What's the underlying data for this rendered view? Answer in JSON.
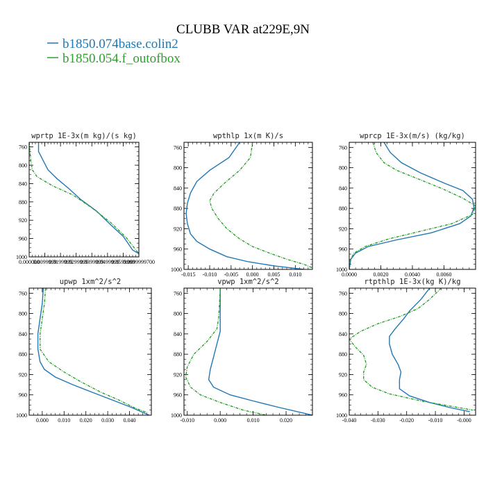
{
  "figure": {
    "title": "CLUBB VAR at229E,9N",
    "legend": [
      {
        "label": "b1850.074base.colin2",
        "color": "#1f77b4"
      },
      {
        "label": "b1850.054.f_outofbox",
        "color": "#2ca02c"
      }
    ]
  },
  "chart_data": [
    {
      "type": "line",
      "title": "wprtp  1E-3x(m kg)/(s kg)",
      "xlabel": "",
      "ylabel": "",
      "xlim": [
        0.0,
        0.07
      ],
      "ylim": [
        1000,
        750
      ],
      "y_inverted": true,
      "xtick_values": [
        0.0,
        0.01,
        0.02,
        0.03,
        0.04,
        0.05,
        0.06,
        0.07
      ],
      "xtick_labels": [
        "0.000000",
        "0.0099999",
        "0.0199999",
        "0.0299999",
        "0.0399999",
        "0.0499999",
        "0.0599999",
        "0.0699999700"
      ],
      "ytick_values": [
        760,
        800,
        840,
        880,
        920,
        960,
        1000
      ],
      "ytick_labels": [
        "760",
        "800",
        "840",
        "880",
        "920",
        "960",
        "1000"
      ],
      "series": [
        {
          "name": "b1850.074base.colin2",
          "color": "#1f77b4",
          "dashed": false,
          "points": [
            [
              0.006,
              750
            ],
            [
              0.006,
              770
            ],
            [
              0.009,
              790
            ],
            [
              0.012,
              810
            ],
            [
              0.018,
              830
            ],
            [
              0.025,
              850
            ],
            [
              0.033,
              875
            ],
            [
              0.043,
              900
            ],
            [
              0.052,
              930
            ],
            [
              0.06,
              955
            ],
            [
              0.064,
              975
            ],
            [
              0.066,
              985
            ],
            [
              0.07,
              993
            ]
          ]
        },
        {
          "name": "b1850.054.f_outofbox",
          "color": "#2ca02c",
          "dashed": true,
          "points": [
            [
              0.0,
              750
            ],
            [
              0.0005,
              770
            ],
            [
              0.001,
              790
            ],
            [
              0.002,
              810
            ],
            [
              0.005,
              825
            ],
            [
              0.015,
              845
            ],
            [
              0.028,
              865
            ],
            [
              0.04,
              893
            ],
            [
              0.052,
              925
            ],
            [
              0.062,
              958
            ],
            [
              0.067,
              980
            ],
            [
              0.07,
              993
            ]
          ]
        }
      ]
    },
    {
      "type": "line",
      "title": "wpthlp  1x(m K)/s",
      "xlabel": "",
      "ylabel": "",
      "xlim": [
        -0.016,
        0.014
      ],
      "ylim": [
        1000,
        750
      ],
      "y_inverted": true,
      "xtick_values": [
        -0.015,
        -0.01,
        -0.005,
        0.0,
        0.005,
        0.01
      ],
      "xtick_labels": [
        "-0.015",
        "-0.010",
        "-0.005",
        "0.000",
        "0.005",
        "0.010"
      ],
      "ytick_values": [
        760,
        800,
        840,
        880,
        920,
        960,
        1000
      ],
      "ytick_labels": [
        "760",
        "800",
        "840",
        "880",
        "920",
        "960",
        "1000"
      ],
      "series": [
        {
          "name": "b1850.074base.colin2",
          "color": "#1f77b4",
          "dashed": false,
          "points": [
            [
              -0.003,
              750
            ],
            [
              -0.0055,
              780
            ],
            [
              -0.01,
              805
            ],
            [
              -0.013,
              827
            ],
            [
              -0.0145,
              850
            ],
            [
              -0.0152,
              870
            ],
            [
              -0.0155,
              890
            ],
            [
              -0.0152,
              910
            ],
            [
              -0.0145,
              930
            ],
            [
              -0.013,
              945
            ],
            [
              -0.01,
              960
            ],
            [
              -0.006,
              975
            ],
            [
              -0.001,
              985
            ],
            [
              0.005,
              993
            ],
            [
              0.012,
              1000
            ]
          ]
        },
        {
          "name": "b1850.054.f_outofbox",
          "color": "#2ca02c",
          "dashed": true,
          "points": [
            [
              0.0,
              750
            ],
            [
              -0.0005,
              780
            ],
            [
              -0.003,
              805
            ],
            [
              -0.0065,
              830
            ],
            [
              -0.009,
              850
            ],
            [
              -0.01,
              865
            ],
            [
              -0.0095,
              880
            ],
            [
              -0.008,
              900
            ],
            [
              -0.006,
              920
            ],
            [
              -0.003,
              940
            ],
            [
              0.0,
              955
            ],
            [
              0.004,
              968
            ],
            [
              0.008,
              980
            ],
            [
              0.012,
              990
            ],
            [
              0.014,
              997
            ]
          ]
        }
      ]
    },
    {
      "type": "line",
      "title": "wprcp  1E-3x(m/s) (kg/kg)",
      "xlabel": "",
      "ylabel": "",
      "xlim": [
        0.0,
        0.008
      ],
      "ylim": [
        1000,
        750
      ],
      "y_inverted": true,
      "xtick_values": [
        0.0,
        0.002,
        0.004,
        0.006
      ],
      "xtick_labels": [
        "0.0000",
        "0.0020",
        "0.0040",
        "0.0060"
      ],
      "ytick_values": [
        760,
        800,
        840,
        880,
        920,
        960,
        1000
      ],
      "ytick_labels": [
        "760",
        "800",
        "840",
        "880",
        "920",
        "960",
        "1000"
      ],
      "series": [
        {
          "name": "b1850.074base.colin2",
          "color": "#1f77b4",
          "dashed": false,
          "points": [
            [
              0.0022,
              750
            ],
            [
              0.0026,
              770
            ],
            [
              0.0033,
              790
            ],
            [
              0.0045,
              810
            ],
            [
              0.006,
              830
            ],
            [
              0.0072,
              845
            ],
            [
              0.0078,
              862
            ],
            [
              0.0079,
              878
            ],
            [
              0.0077,
              895
            ],
            [
              0.007,
              910
            ],
            [
              0.0052,
              928
            ],
            [
              0.003,
              942
            ],
            [
              0.0012,
              955
            ],
            [
              0.0004,
              968
            ],
            [
              0.0001,
              980
            ],
            [
              0.0,
              1000
            ]
          ]
        },
        {
          "name": "b1850.054.f_outofbox",
          "color": "#2ca02c",
          "dashed": true,
          "points": [
            [
              0.0015,
              750
            ],
            [
              0.0017,
              770
            ],
            [
              0.0022,
              790
            ],
            [
              0.003,
              805
            ],
            [
              0.0042,
              820
            ],
            [
              0.0058,
              840
            ],
            [
              0.0072,
              860
            ],
            [
              0.008,
              875
            ],
            [
              0.0078,
              892
            ],
            [
              0.0065,
              910
            ],
            [
              0.0045,
              925
            ],
            [
              0.0025,
              940
            ],
            [
              0.001,
              955
            ],
            [
              0.0003,
              968
            ],
            [
              0.0,
              985
            ],
            [
              0.0,
              1000
            ]
          ]
        }
      ]
    },
    {
      "type": "line",
      "title": "upwp  1xm^2/s^2",
      "xlabel": "",
      "ylabel": "",
      "xlim": [
        -0.006,
        0.05
      ],
      "ylim": [
        1000,
        750
      ],
      "y_inverted": true,
      "xtick_values": [
        0.0,
        0.01,
        0.02,
        0.03,
        0.04
      ],
      "xtick_labels": [
        "0.000",
        "0.010",
        "0.020",
        "0.030",
        "0.040"
      ],
      "ytick_values": [
        760,
        800,
        840,
        880,
        920,
        960,
        1000
      ],
      "ytick_labels": [
        "760",
        "800",
        "840",
        "880",
        "920",
        "960",
        "1000"
      ],
      "series": [
        {
          "name": "b1850.074base.colin2",
          "color": "#1f77b4",
          "dashed": false,
          "points": [
            [
              0.0005,
              750
            ],
            [
              0.0,
              780
            ],
            [
              -0.001,
              810
            ],
            [
              -0.002,
              840
            ],
            [
              -0.002,
              870
            ],
            [
              -0.001,
              895
            ],
            [
              0.001,
              910
            ],
            [
              0.006,
              925
            ],
            [
              0.014,
              940
            ],
            [
              0.023,
              955
            ],
            [
              0.032,
              970
            ],
            [
              0.041,
              985
            ],
            [
              0.049,
              1000
            ]
          ]
        },
        {
          "name": "b1850.054.f_outofbox",
          "color": "#2ca02c",
          "dashed": true,
          "points": [
            [
              0.0015,
              750
            ],
            [
              0.001,
              780
            ],
            [
              0.0,
              810
            ],
            [
              -0.001,
              840
            ],
            [
              -0.001,
              870
            ],
            [
              0.003,
              895
            ],
            [
              0.01,
              915
            ],
            [
              0.018,
              935
            ],
            [
              0.027,
              955
            ],
            [
              0.035,
              970
            ],
            [
              0.042,
              985
            ],
            [
              0.048,
              995
            ]
          ]
        }
      ]
    },
    {
      "type": "line",
      "title": "vpwp  1xm^2/s^2",
      "xlabel": "",
      "ylabel": "",
      "xlim": [
        -0.011,
        0.028
      ],
      "ylim": [
        1000,
        750
      ],
      "y_inverted": true,
      "xtick_values": [
        -0.01,
        0.0,
        0.01,
        0.02
      ],
      "xtick_labels": [
        "-0.010",
        "0.000",
        "0.010",
        "0.020"
      ],
      "ytick_values": [
        760,
        800,
        840,
        880,
        920,
        960,
        1000
      ],
      "ytick_labels": [
        "760",
        "800",
        "840",
        "880",
        "920",
        "960",
        "1000"
      ],
      "series": [
        {
          "name": "b1850.074base.colin2",
          "color": "#1f77b4",
          "dashed": false,
          "points": [
            [
              0.0,
              750
            ],
            [
              0.0,
              780
            ],
            [
              0.0,
              810
            ],
            [
              0.0,
              835
            ],
            [
              -0.001,
              860
            ],
            [
              -0.002,
              885
            ],
            [
              -0.003,
              910
            ],
            [
              -0.0035,
              930
            ],
            [
              -0.002,
              945
            ],
            [
              0.003,
              960
            ],
            [
              0.01,
              972
            ],
            [
              0.018,
              985
            ],
            [
              0.028,
              1000
            ]
          ]
        },
        {
          "name": "b1850.054.f_outofbox",
          "color": "#2ca02c",
          "dashed": true,
          "points": [
            [
              0.0,
              750
            ],
            [
              -0.0002,
              780
            ],
            [
              -0.0005,
              810
            ],
            [
              -0.001,
              830
            ],
            [
              -0.004,
              855
            ],
            [
              -0.008,
              880
            ],
            [
              -0.01,
              905
            ],
            [
              -0.0105,
              925
            ],
            [
              -0.009,
              945
            ],
            [
              -0.006,
              960
            ],
            [
              0.0,
              975
            ],
            [
              0.007,
              990
            ],
            [
              0.014,
              1000
            ]
          ]
        }
      ]
    },
    {
      "type": "line",
      "title": "rtpthlp  1E-3x(kg K)/kg",
      "xlabel": "",
      "ylabel": "",
      "xlim": [
        -0.04,
        0.004
      ],
      "ylim": [
        1000,
        750
      ],
      "y_inverted": true,
      "xtick_values": [
        -0.04,
        -0.03,
        -0.02,
        -0.01,
        0.0
      ],
      "xtick_labels": [
        "-0.040",
        "-0.030",
        "-0.020",
        "-0.010",
        "-0.000"
      ],
      "ytick_values": [
        760,
        800,
        840,
        880,
        920,
        960,
        1000
      ],
      "ytick_labels": [
        "760",
        "800",
        "840",
        "880",
        "920",
        "960",
        "1000"
      ],
      "series": [
        {
          "name": "b1850.074base.colin2",
          "color": "#1f77b4",
          "dashed": false,
          "points": [
            [
              -0.012,
              750
            ],
            [
              -0.015,
              772
            ],
            [
              -0.019,
              795
            ],
            [
              -0.021,
              810
            ],
            [
              -0.024,
              830
            ],
            [
              -0.026,
              845
            ],
            [
              -0.026,
              860
            ],
            [
              -0.025,
              880
            ],
            [
              -0.023,
              900
            ],
            [
              -0.022,
              915
            ],
            [
              -0.0225,
              930
            ],
            [
              -0.0225,
              948
            ],
            [
              -0.019,
              962
            ],
            [
              -0.012,
              975
            ],
            [
              -0.005,
              985
            ],
            [
              0.002,
              993
            ]
          ]
        },
        {
          "name": "b1850.054.f_outofbox",
          "color": "#2ca02c",
          "dashed": true,
          "points": [
            [
              -0.008,
              750
            ],
            [
              -0.012,
              772
            ],
            [
              -0.016,
              790
            ],
            [
              -0.022,
              805
            ],
            [
              -0.03,
              820
            ],
            [
              -0.036,
              835
            ],
            [
              -0.04,
              850
            ],
            [
              -0.038,
              865
            ],
            [
              -0.035,
              882
            ],
            [
              -0.034,
              900
            ],
            [
              -0.035,
              915
            ],
            [
              -0.035,
              930
            ],
            [
              -0.032,
              945
            ],
            [
              -0.026,
              958
            ],
            [
              -0.015,
              972
            ],
            [
              -0.005,
              982
            ],
            [
              0.003,
              990
            ]
          ]
        }
      ]
    }
  ]
}
